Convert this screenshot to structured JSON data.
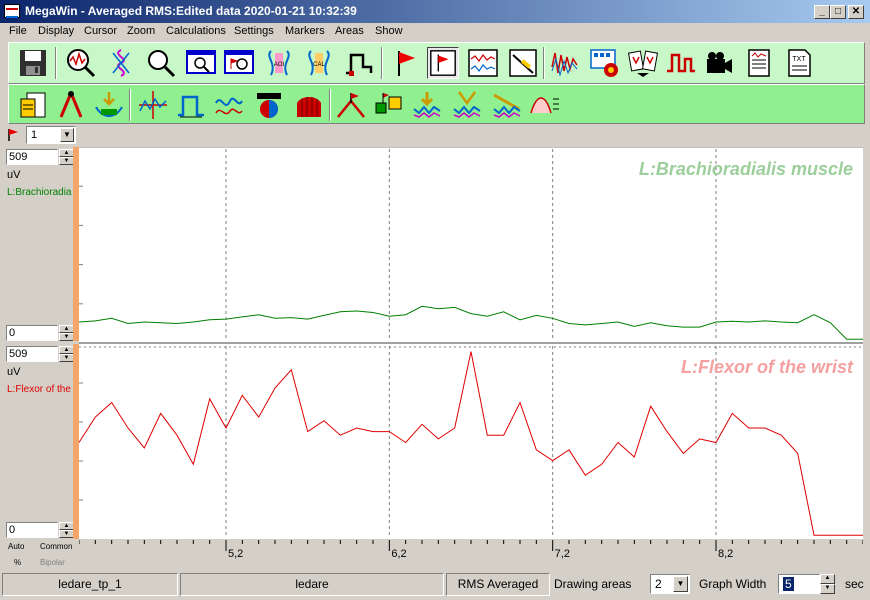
{
  "window": {
    "title": "MegaWin - Averaged RMS:Edited data 2020-01-21 10:32:39",
    "controls": {
      "minimize": "_",
      "maximize": "□",
      "close": "✕"
    }
  },
  "menu": [
    "File",
    "Display",
    "Cursor",
    "Zoom",
    "Calculations",
    "Settings",
    "Markers",
    "Areas",
    "Show"
  ],
  "toolbar1": [
    "save-icon",
    "zoom-signal-icon",
    "spectrum-icon",
    "magnifier-icon",
    "zoom-window-icon",
    "zoom-marker-icon",
    "aoi-icon",
    "calc-icon",
    "pulse-step-icon",
    "marker-flag-icon",
    "flag-window-icon",
    "signal-window-icon",
    "ruler-icon",
    "emg-raw-icon",
    "multi-panel-icon",
    "cards-icon",
    "square-wave-icon",
    "video-camera-icon",
    "report-icon",
    "txt-export-icon"
  ],
  "toolbar2": [
    "document-report-icon",
    "compass-icon",
    "filter-arrow-icon",
    "crosshair-icon",
    "rectangle-pulse-icon",
    "wave-icon",
    "ball-icon",
    "bar-envelope-icon",
    "mountain-flag-icon",
    "flag-boxes-icon",
    "down-arrow-wave-icon",
    "scissors-wave-icon",
    "tools-wave-icon",
    "curve-table-icon"
  ],
  "marker_selector": {
    "value": "1"
  },
  "channels": [
    {
      "max": "509",
      "min": "0",
      "unit": "uV",
      "name": "L:Brachioradialis muscle",
      "short_name": "L:Brachioradia",
      "color": "#008000",
      "label_color": "#9ccf9c"
    },
    {
      "max": "509",
      "min": "0",
      "unit": "uV",
      "name": "L:Flexor of the wrist",
      "short_name": "L:Flexor of the",
      "color": "#e00000",
      "label_color": "#f4a0a0"
    }
  ],
  "bottom_left": {
    "auto": "Auto",
    "common": "Common",
    "percent": "%",
    "bipolar": "Bipolar"
  },
  "status": {
    "file": "ledare_tp_1",
    "subject": "ledare",
    "mode": "RMS Averaged",
    "drawing_areas_label": "Drawing areas",
    "drawing_areas_value": "2",
    "graph_width_label": "Graph Width",
    "graph_width_value": "5",
    "graph_width_unit": "sec"
  },
  "chart_data": {
    "type": "line",
    "x_ticks": [
      "5,2",
      "6,2",
      "7,2",
      "8,2"
    ],
    "xlim": [
      4.3,
      9.1
    ],
    "ylim": [
      0,
      509
    ],
    "series": [
      {
        "name": "L:Brachioradialis muscle",
        "x": [
          4.3,
          4.4,
          4.5,
          4.6,
          4.7,
          4.8,
          4.9,
          5.0,
          5.1,
          5.2,
          5.3,
          5.4,
          5.5,
          5.6,
          5.7,
          5.8,
          5.9,
          6.0,
          6.1,
          6.2,
          6.3,
          6.4,
          6.5,
          6.6,
          6.7,
          6.8,
          6.9,
          7.0,
          7.1,
          7.2,
          7.3,
          7.4,
          7.5,
          7.6,
          7.7,
          7.8,
          7.9,
          8.0,
          8.1,
          8.2,
          8.3,
          8.4,
          8.5,
          8.6,
          8.7,
          8.8,
          8.9,
          9.0,
          9.1
        ],
        "values": [
          52,
          55,
          62,
          48,
          52,
          50,
          48,
          52,
          58,
          60,
          66,
          72,
          62,
          64,
          60,
          70,
          80,
          82,
          78,
          68,
          72,
          95,
          88,
          92,
          75,
          68,
          80,
          58,
          70,
          62,
          48,
          44,
          48,
          52,
          40,
          50,
          42,
          38,
          38,
          52,
          54,
          52,
          55,
          52,
          50,
          72,
          50,
          5,
          5
        ]
      },
      {
        "name": "L:Flexor of the wrist",
        "x": [
          4.3,
          4.4,
          4.5,
          4.6,
          4.7,
          4.8,
          4.9,
          5.0,
          5.1,
          5.2,
          5.3,
          5.4,
          5.5,
          5.6,
          5.7,
          5.8,
          5.9,
          6.0,
          6.1,
          6.2,
          6.3,
          6.4,
          6.5,
          6.6,
          6.7,
          6.8,
          6.9,
          7.0,
          7.1,
          7.2,
          7.3,
          7.4,
          7.5,
          7.6,
          7.7,
          7.8,
          7.9,
          8.0,
          8.1,
          8.2,
          8.3,
          8.4,
          8.5,
          8.6,
          8.7,
          8.8,
          8.9,
          9.0,
          9.1
        ],
        "values": [
          260,
          330,
          370,
          300,
          245,
          340,
          280,
          200,
          380,
          300,
          390,
          330,
          410,
          460,
          290,
          320,
          280,
          300,
          290,
          290,
          260,
          310,
          270,
          300,
          510,
          280,
          280,
          370,
          240,
          210,
          240,
          170,
          200,
          260,
          220,
          360,
          290,
          230,
          270,
          260,
          340,
          300,
          300,
          280,
          230,
          5,
          5,
          5,
          5
        ]
      }
    ]
  }
}
